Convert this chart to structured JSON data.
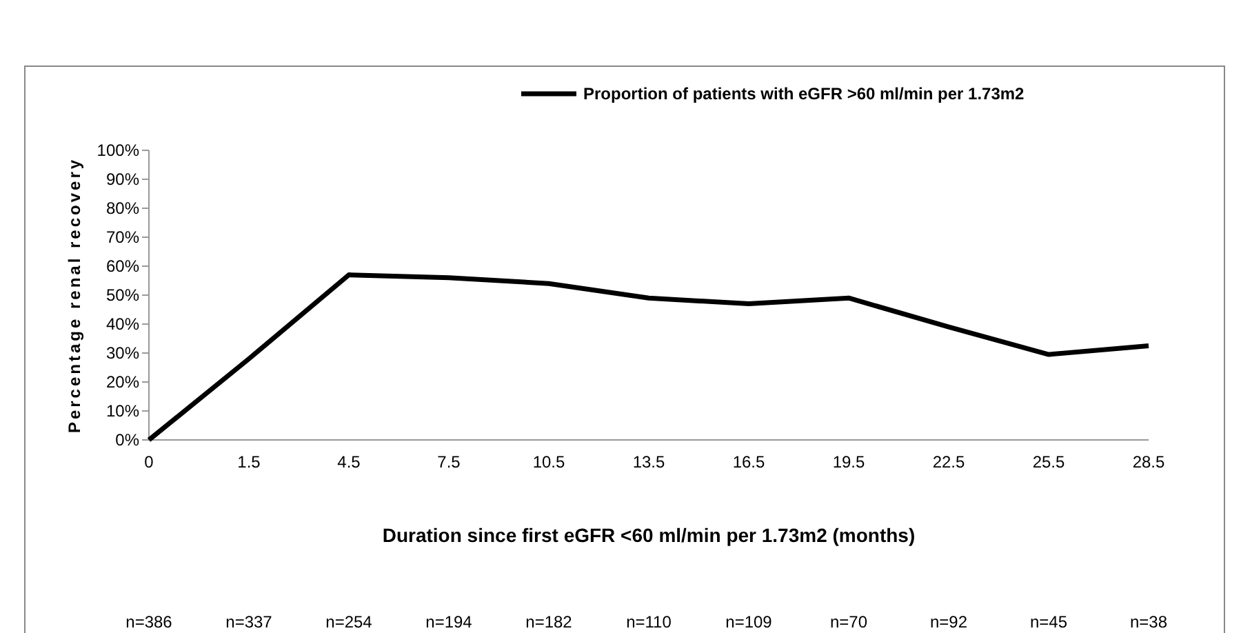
{
  "chart_data": {
    "type": "line",
    "xlabel": "Duration since first eGFR <60 ml/min per 1.73m2 (months)",
    "ylabel": "Percentage renal recovery",
    "categories": [
      "0",
      "1.5",
      "4.5",
      "7.5",
      "10.5",
      "13.5",
      "16.5",
      "19.5",
      "22.5",
      "25.5",
      "28.5"
    ],
    "series": [
      {
        "name": "Proportion of patients with eGFR >60 ml/min per 1.73m2",
        "color": "#000000",
        "values": [
          0,
          28,
          57,
          56,
          54,
          49,
          47,
          49,
          39,
          29.5,
          32.5
        ]
      }
    ],
    "ylim": [
      0,
      100
    ],
    "yticks": [
      {
        "value": 0,
        "label": "0%"
      },
      {
        "value": 10,
        "label": "10%"
      },
      {
        "value": 20,
        "label": "20%"
      },
      {
        "value": 30,
        "label": "30%"
      },
      {
        "value": 40,
        "label": "40%"
      },
      {
        "value": 50,
        "label": "50%"
      },
      {
        "value": 60,
        "label": "60%"
      },
      {
        "value": 70,
        "label": "70%"
      },
      {
        "value": 80,
        "label": "80%"
      },
      {
        "value": 90,
        "label": "90%"
      },
      {
        "value": 100,
        "label": "100%"
      }
    ],
    "annotations": [
      "n=386",
      "n=337",
      "n=254",
      "n=194",
      "n=182",
      "n=110",
      "n=109",
      "n=70",
      "n=92",
      "n=45",
      "n=38"
    ],
    "grid": false,
    "legend": "top",
    "marker": "none",
    "line_style": "solid"
  }
}
